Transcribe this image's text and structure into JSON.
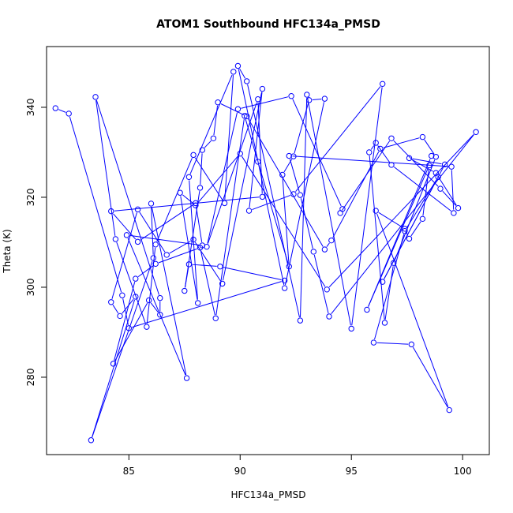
{
  "chart_data": {
    "type": "line",
    "title": "ATOM1 Southbound HFC134a_PMSD",
    "xlabel": "HFC134a_PMSD",
    "ylabel": "Theta (K)",
    "xlim": [
      81.3,
      101.2
    ],
    "ylim": [
      262.8,
      353.5
    ],
    "xticks": [
      85,
      90,
      95,
      100
    ],
    "yticks": [
      280,
      300,
      320,
      340
    ],
    "grid": false,
    "legend": "none",
    "series": [
      {
        "color": "#0000ff",
        "marker": "open-circle",
        "points": [
          [
            81.7,
            339.8
          ],
          [
            82.3,
            338.6
          ],
          [
            84.7,
            298.2
          ],
          [
            85.0,
            290.9
          ],
          [
            92.0,
            301.5
          ],
          [
            89.1,
            304.6
          ],
          [
            87.7,
            305.1
          ],
          [
            87.5,
            299.2
          ],
          [
            88.2,
            322.1
          ],
          [
            88.3,
            330.5
          ],
          [
            88.8,
            333.1
          ],
          [
            89.0,
            341.1
          ],
          [
            90.3,
            338.0
          ],
          [
            93.8,
            308.4
          ],
          [
            94.1,
            310.4
          ],
          [
            96.3,
            330.8
          ],
          [
            98.2,
            333.4
          ],
          [
            98.8,
            329.0
          ],
          [
            96.9,
            305.4
          ],
          [
            96.5,
            292.1
          ],
          [
            95.8,
            330.0
          ],
          [
            96.1,
            332.1
          ],
          [
            96.8,
            327.2
          ],
          [
            99.6,
            316.5
          ],
          [
            99.5,
            326.8
          ],
          [
            92.2,
            329.2
          ],
          [
            92.7,
            320.5
          ],
          [
            93.3,
            307.9
          ],
          [
            94.0,
            293.5
          ],
          [
            100.6,
            334.5
          ],
          [
            93.9,
            299.5
          ],
          [
            90.0,
            329.7
          ],
          [
            88.0,
            318.2
          ],
          [
            87.3,
            321.0
          ],
          [
            88.1,
            296.5
          ],
          [
            87.7,
            324.5
          ],
          [
            89.7,
            347.9
          ],
          [
            89.3,
            318.7
          ],
          [
            87.9,
            329.4
          ],
          [
            86.2,
            309.5
          ],
          [
            85.8,
            291.2
          ],
          [
            84.4,
            310.7
          ],
          [
            83.5,
            342.3
          ],
          [
            86.4,
            297.6
          ],
          [
            86.4,
            293.9
          ],
          [
            85.9,
            297.1
          ],
          [
            84.3,
            283.0
          ],
          [
            85.3,
            301.9
          ],
          [
            86.2,
            305.2
          ],
          [
            88.2,
            308.8
          ],
          [
            88.9,
            293.1
          ],
          [
            90.2,
            338.1
          ],
          [
            90.8,
            327.9
          ],
          [
            92.2,
            304.6
          ],
          [
            91.9,
            325.0
          ],
          [
            92.4,
            329.1
          ],
          [
            93.1,
            341.6
          ],
          [
            93.8,
            341.9
          ],
          [
            92.0,
            299.8
          ],
          [
            89.9,
            349.2
          ],
          [
            90.3,
            345.8
          ],
          [
            92.7,
            292.6
          ],
          [
            93.0,
            342.8
          ],
          [
            95.0,
            290.8
          ],
          [
            96.4,
            345.2
          ],
          [
            92.4,
            320.7
          ],
          [
            90.4,
            317.0
          ],
          [
            91.0,
            344.1
          ],
          [
            89.2,
            300.8
          ],
          [
            87.9,
            310.6
          ],
          [
            86.7,
            307.2
          ],
          [
            85.4,
            317.3
          ],
          [
            84.2,
            296.7
          ],
          [
            84.6,
            293.6
          ],
          [
            85.3,
            297.9
          ],
          [
            83.3,
            266.0
          ],
          [
            86.1,
            306.5
          ],
          [
            86.0,
            318.6
          ],
          [
            87.6,
            279.8
          ],
          [
            84.9,
            311.6
          ],
          [
            88.3,
            309.3
          ],
          [
            88.0,
            318.7
          ],
          [
            85.4,
            310.1
          ],
          [
            84.2,
            316.9
          ],
          [
            91.0,
            320.1
          ],
          [
            90.8,
            341.8
          ],
          [
            88.5,
            309.0
          ],
          [
            89.9,
            339.6
          ],
          [
            92.3,
            342.5
          ],
          [
            94.6,
            317.4
          ],
          [
            94.5,
            316.5
          ],
          [
            96.8,
            333.1
          ],
          [
            99.0,
            321.9
          ],
          [
            99.8,
            317.6
          ],
          [
            98.8,
            325.4
          ],
          [
            97.6,
            328.7
          ],
          [
            99.2,
            327.3
          ],
          [
            96.4,
            301.2
          ],
          [
            98.9,
            324.5
          ],
          [
            97.4,
            312.5
          ],
          [
            96.0,
            287.7
          ],
          [
            97.7,
            287.3
          ],
          [
            99.4,
            272.7
          ],
          [
            96.1,
            317.0
          ],
          [
            97.4,
            313.0
          ],
          [
            97.6,
            310.8
          ],
          [
            98.2,
            315.2
          ],
          [
            98.5,
            327.1
          ],
          [
            95.7,
            295.0
          ],
          [
            98.6,
            329.2
          ]
        ]
      }
    ]
  }
}
